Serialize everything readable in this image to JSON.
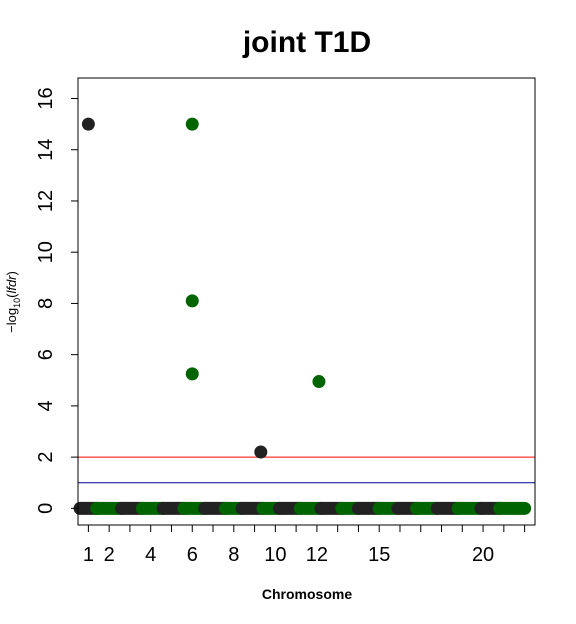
{
  "chart_data": {
    "type": "scatter",
    "title": "joint T1D",
    "xlabel": "Chromosome",
    "ylabel": "−log10(lfdr)",
    "ylabel_parts": {
      "prefix": "−log",
      "subscript": "10",
      "open": "(",
      "italic": "lfdr",
      "close": ")"
    },
    "xlim": [
      0.5,
      22.5
    ],
    "ylim": [
      -0.65,
      16.8
    ],
    "y_ticks": [
      0,
      2,
      4,
      6,
      8,
      10,
      12,
      14,
      16
    ],
    "x_tick_positions": [
      1,
      2,
      3,
      4,
      5,
      6,
      7,
      8,
      9,
      10,
      11,
      12,
      13,
      14,
      15,
      16,
      17,
      18,
      19,
      20,
      21,
      22
    ],
    "x_tick_labels": [
      "1",
      "2",
      "4",
      "6",
      "8",
      "10",
      "12",
      "15",
      "20"
    ],
    "x_tick_label_chromosomes": [
      1,
      2,
      4,
      6,
      8,
      10,
      12,
      15,
      20
    ],
    "chromosome_offsets": [
      0.6,
      1.4,
      2.6,
      3.6,
      4.6,
      5.6,
      6.6,
      7.6,
      8.4,
      9.4,
      10.2,
      11.2,
      12.2,
      13.2,
      14.0,
      15.0,
      15.9,
      16.8,
      17.8,
      18.8,
      19.9,
      20.8
    ],
    "chromosome_ends": [
      1.4,
      2.6,
      3.6,
      4.6,
      5.6,
      6.6,
      7.6,
      8.4,
      9.4,
      10.2,
      11.2,
      12.2,
      13.2,
      14.0,
      15.0,
      15.9,
      16.8,
      17.8,
      18.8,
      19.9,
      20.8,
      22.0
    ],
    "baseline_y": 0,
    "colors": {
      "odd": "#222222",
      "even": "#006400"
    },
    "thresholds": [
      {
        "y": 2,
        "color": "#ff0000"
      },
      {
        "y": 1,
        "color": "#00008b"
      }
    ],
    "points": [
      {
        "x": 1.0,
        "y": 15.0,
        "color": "#222222"
      },
      {
        "x": 6.0,
        "y": 15.0,
        "color": "#006400"
      },
      {
        "x": 6.0,
        "y": 8.1,
        "color": "#006400"
      },
      {
        "x": 6.0,
        "y": 5.25,
        "color": "#006400"
      },
      {
        "x": 12.1,
        "y": 4.95,
        "color": "#006400"
      },
      {
        "x": 9.3,
        "y": 2.2,
        "color": "#222222"
      }
    ]
  }
}
